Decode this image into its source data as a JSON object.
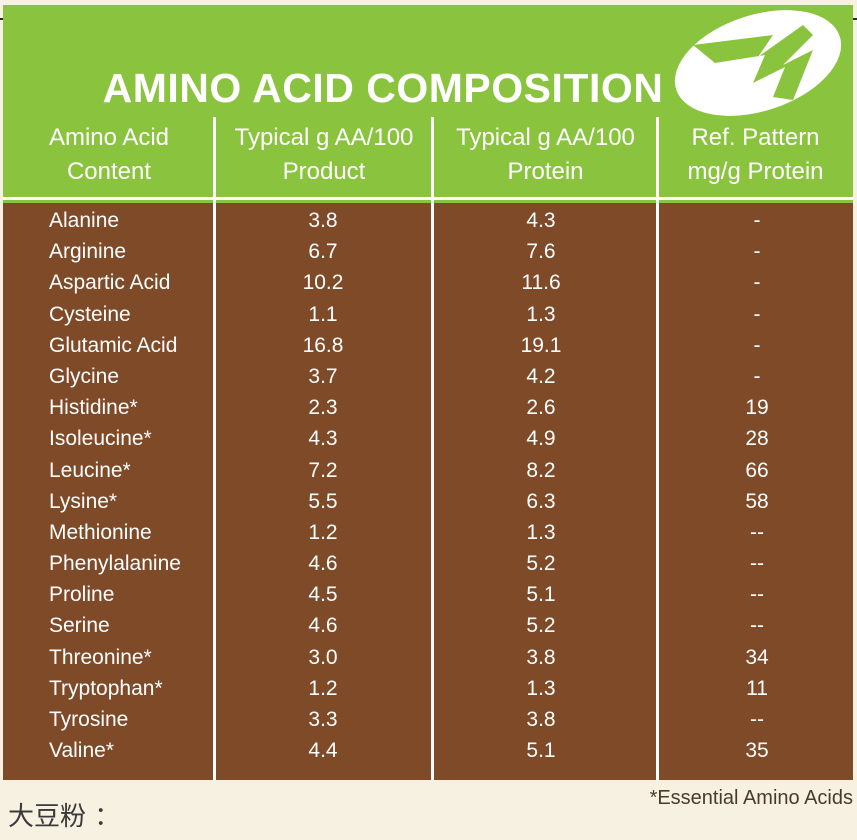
{
  "title": "AMINO ACID COMPOSITION",
  "headers": {
    "col1": [
      "Amino Acid",
      "Content"
    ],
    "col2": [
      "Typical g AA/100",
      "Product"
    ],
    "col3": [
      "Typical g AA/100",
      "Protein"
    ],
    "col4": [
      "Ref. Pattern",
      "mg/g Protein"
    ]
  },
  "rows": [
    {
      "name": "Alanine",
      "product": "3.8",
      "protein": "4.3",
      "ref": "-"
    },
    {
      "name": "Arginine",
      "product": "6.7",
      "protein": "7.6",
      "ref": "-"
    },
    {
      "name": "Aspartic Acid",
      "product": "10.2",
      "protein": "11.6",
      "ref": "-"
    },
    {
      "name": "Cysteine",
      "product": "1.1",
      "protein": "1.3",
      "ref": "-"
    },
    {
      "name": "Glutamic Acid",
      "product": "16.8",
      "protein": "19.1",
      "ref": "-"
    },
    {
      "name": "Glycine",
      "product": "3.7",
      "protein": "4.2",
      "ref": "-"
    },
    {
      "name": "Histidine*",
      "product": "2.3",
      "protein": "2.6",
      "ref": "19"
    },
    {
      "name": "Isoleucine*",
      "product": "4.3",
      "protein": "4.9",
      "ref": "28"
    },
    {
      "name": "Leucine*",
      "product": "7.2",
      "protein": "8.2",
      "ref": "66"
    },
    {
      "name": "Lysine*",
      "product": "5.5",
      "protein": "6.3",
      "ref": "58"
    },
    {
      "name": "Methionine",
      "product": "1.2",
      "protein": "1.3",
      "ref": "--"
    },
    {
      "name": "Phenylalanine",
      "product": "4.6",
      "protein": "5.2",
      "ref": "--"
    },
    {
      "name": "Proline",
      "product": "4.5",
      "protein": "5.1",
      "ref": "--"
    },
    {
      "name": "Serine",
      "product": "4.6",
      "protein": "5.2",
      "ref": "--"
    },
    {
      "name": "Threonine*",
      "product": "3.0",
      "protein": "3.8",
      "ref": "34"
    },
    {
      "name": "Tryptophan*",
      "product": "1.2",
      "protein": "1.3",
      "ref": "11"
    },
    {
      "name": "Tyrosine",
      "product": "3.3",
      "protein": "3.8",
      "ref": "--"
    },
    {
      "name": "Valine*",
      "product": "4.4",
      "protein": "5.1",
      "ref": "35"
    }
  ],
  "footnote": "*Essential Amino Acids",
  "bottom_label": "大豆粉 ：",
  "colors": {
    "header_green": "#8ac33e",
    "body_brown": "#7e4a28",
    "page_background": "#f7f1e1"
  },
  "logo_icon": "leaf-logo-icon"
}
